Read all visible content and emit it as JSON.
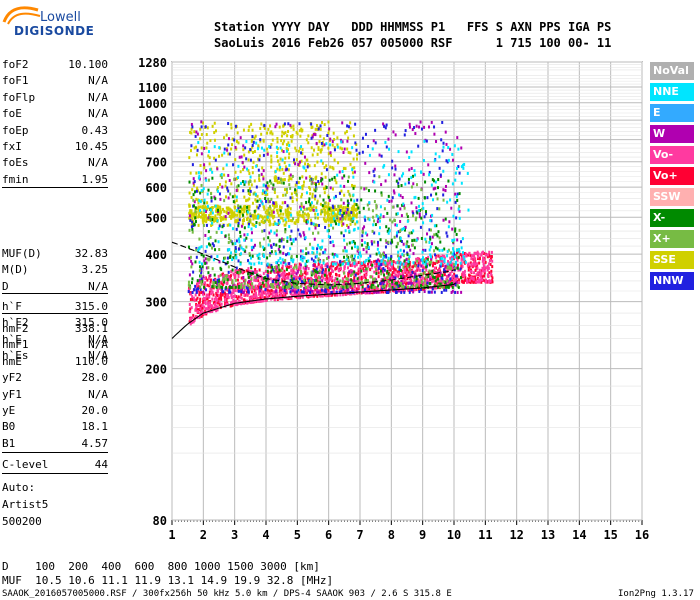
{
  "logo": {
    "line1": "Lowell",
    "line2": "DIGISONDE"
  },
  "header": {
    "labels_line": "Station YYYY DAY   DDD HHMMSS P1   FFS S AXN PPS IGA PS",
    "values_line": "SaoLuis 2016 Feb26 057 005000 RSF      1 715 100 00- 11"
  },
  "params": [
    {
      "label": "foF2",
      "value": "10.100"
    },
    {
      "label": "foF1",
      "value": "N/A"
    },
    {
      "label": "foFlp",
      "value": "N/A"
    },
    {
      "label": "foE",
      "value": "N/A"
    },
    {
      "label": "foEp",
      "value": "0.43"
    },
    {
      "label": "fxI",
      "value": "10.45"
    },
    {
      "label": "foEs",
      "value": "N/A"
    },
    {
      "label": "fmin",
      "value": "1.95"
    },
    {
      "label": "MUF(D)",
      "value": "32.83"
    },
    {
      "label": "M(D)",
      "value": "3.25"
    },
    {
      "label": "D",
      "value": "N/A"
    },
    {
      "label": "h`F",
      "value": "315.0"
    },
    {
      "label": "h`F2",
      "value": "315.0"
    },
    {
      "label": "h`E",
      "value": "N/A"
    },
    {
      "label": "h`Es",
      "value": "N/A"
    },
    {
      "label": "hmF2",
      "value": "338.1"
    },
    {
      "label": "hmF1",
      "value": "N/A"
    },
    {
      "label": "hmE",
      "value": "110.0"
    },
    {
      "label": "yF2",
      "value": "28.0"
    },
    {
      "label": "yF1",
      "value": "N/A"
    },
    {
      "label": "yE",
      "value": "20.0"
    },
    {
      "label": "B0",
      "value": "18.1"
    },
    {
      "label": "B1",
      "value": "4.57"
    },
    {
      "label": "C-level",
      "value": "44"
    }
  ],
  "auto": {
    "line1": "Auto:",
    "line2": "Artist5",
    "line3": "500200"
  },
  "legend": [
    {
      "label": "NoVal",
      "color": "#b0b0b0"
    },
    {
      "label": "NNE",
      "color": "#00e5ff"
    },
    {
      "label": "E",
      "color": "#33aaff"
    },
    {
      "label": "W",
      "color": "#b000b0"
    },
    {
      "label": "Vo-",
      "color": "#ff3aa0"
    },
    {
      "label": "Vo+",
      "color": "#ff0033"
    },
    {
      "label": "SSW",
      "color": "#ffb0b0"
    },
    {
      "label": "X-",
      "color": "#008a00"
    },
    {
      "label": "X+",
      "color": "#77bb44"
    },
    {
      "label": "SSE",
      "color": "#d0d000"
    },
    {
      "label": "NNW",
      "color": "#2020e0"
    }
  ],
  "footer": {
    "d_line": "D    100  200  400  600  800 1000 1500 3000 [km]",
    "muf_line": "MUF  10.5 10.6 11.1 11.9 13.1 14.9 19.9 32.8 [MHz]",
    "file_line": "SAAOK_2016057005000.RSF / 300fx256h 50 kHz 5.0 km / DPS-4 SAAOK 903 / 2.6 S 315.8 E",
    "version": "Ion2Png 1.3.17"
  },
  "chart_data": {
    "type": "scatter",
    "xlabel": "",
    "ylabel": "",
    "x_ticks": [
      1,
      2,
      3,
      4,
      5,
      6,
      7,
      8,
      9,
      10,
      11,
      12,
      13,
      14,
      15,
      16
    ],
    "y_ticks": [
      80,
      200,
      300,
      400,
      500,
      600,
      700,
      800,
      900,
      1000,
      1100,
      1280
    ],
    "xlim": [
      1,
      16
    ],
    "ylim": [
      80,
      1280
    ],
    "y_scale": "log",
    "grid": true,
    "legend_position": "right",
    "series": [
      {
        "name": "SSE",
        "color": "#d0d000",
        "x_range": [
          1.5,
          6.9
        ],
        "y_range": [
          480,
          900
        ]
      },
      {
        "name": "Vo+",
        "color": "#ff0033",
        "x_range": [
          1.5,
          11.2
        ],
        "y_range": [
          300,
          390
        ]
      },
      {
        "name": "Vo-",
        "color": "#ff3aa0",
        "x_range": [
          1.5,
          11.2
        ],
        "y_range": [
          310,
          430
        ]
      },
      {
        "name": "W",
        "color": "#b000b0",
        "x_range": [
          1.5,
          10.2
        ],
        "y_range": [
          320,
          900
        ]
      },
      {
        "name": "NNW",
        "color": "#2020e0",
        "x_range": [
          1.5,
          10.2
        ],
        "y_range": [
          320,
          900
        ]
      },
      {
        "name": "X-",
        "color": "#008a00",
        "x_range": [
          1.5,
          10.2
        ],
        "y_range": [
          330,
          650
        ]
      },
      {
        "name": "X+",
        "color": "#77bb44",
        "x_range": [
          1.5,
          10.2
        ],
        "y_range": [
          330,
          650
        ]
      },
      {
        "name": "NNE",
        "color": "#00e5ff",
        "x_range": [
          1.8,
          10.5
        ],
        "y_range": [
          380,
          800
        ]
      }
    ],
    "trace_lower": {
      "x": [
        1,
        1.5,
        2,
        3,
        4,
        5,
        6,
        7,
        8,
        9,
        10,
        10.1
      ],
      "y": [
        240,
        262,
        280,
        297,
        305,
        310,
        314,
        318,
        322,
        326,
        333,
        340
      ]
    },
    "trace_upper": {
      "x": [
        1,
        2,
        3,
        4,
        5,
        6,
        7,
        8,
        9,
        9.8,
        10.1
      ],
      "y": [
        430,
        400,
        370,
        345,
        335,
        332,
        335,
        342,
        352,
        360,
        365
      ]
    }
  }
}
